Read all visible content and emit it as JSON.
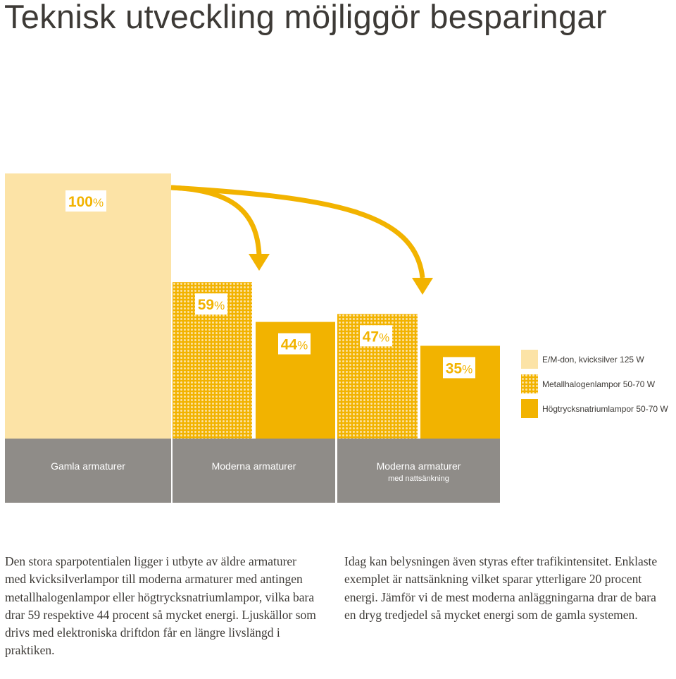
{
  "title": "Teknisk utveckling möjliggör besparingar",
  "colors": {
    "kvicksilver": "#fce3a6",
    "metallhalogen": "#f2b300",
    "hogtrycksnatrium": "#f2b300",
    "group_band": "#8f8c88",
    "arrow": "#f2b300",
    "label_bg": "#ffffff"
  },
  "chart_data": {
    "type": "bar",
    "ylim": [
      0,
      100
    ],
    "grid": false,
    "legend_position": "right",
    "series": [
      {
        "name": "E/M-don, kvicksilver 125 W",
        "pattern": "solid-light"
      },
      {
        "name": "Metallhalogenlampor 50-70 W",
        "pattern": "dotted"
      },
      {
        "name": "Högtrycksnatriumlampor 50-70 W",
        "pattern": "solid"
      }
    ],
    "bars": [
      {
        "group": 0,
        "series": 0,
        "value": 100,
        "label": "100%"
      },
      {
        "group": 1,
        "series": 1,
        "value": 59,
        "label": "59%"
      },
      {
        "group": 1,
        "series": 2,
        "value": 44,
        "label": "44%"
      },
      {
        "group": 2,
        "series": 1,
        "value": 47,
        "label": "47%"
      },
      {
        "group": 2,
        "series": 2,
        "value": 35,
        "label": "35%"
      }
    ],
    "groups": [
      {
        "label": "Gamla armaturer",
        "sublabel": ""
      },
      {
        "label": "Moderna armaturer",
        "sublabel": ""
      },
      {
        "label": "Moderna armaturer",
        "sublabel": "med nattsänkning"
      }
    ],
    "arrows": [
      {
        "from_group": 0,
        "to_group": 1
      },
      {
        "from_group": 0,
        "to_group": 2
      }
    ]
  },
  "body": {
    "left": "Den stora sparpotentialen ligger i utbyte av äldre armaturer med kvicksilverlampor till moderna armaturer med antingen metallhalogenlampor eller högtrycksnatriumlampor, vilka bara drar 59 respektive 44 procent så mycket energi. Ljuskällor som drivs med elektroniska driftdon får en längre livslängd i praktiken.",
    "right": "Idag kan belysningen även styras efter trafikintensitet. Enklaste exemplet är nattsänkning vilket sparar ytterligare 20 procent energi. Jämför vi de mest moderna anläggningarna drar de bara en dryg tredjedel så mycket energi som de gamla systemen."
  }
}
